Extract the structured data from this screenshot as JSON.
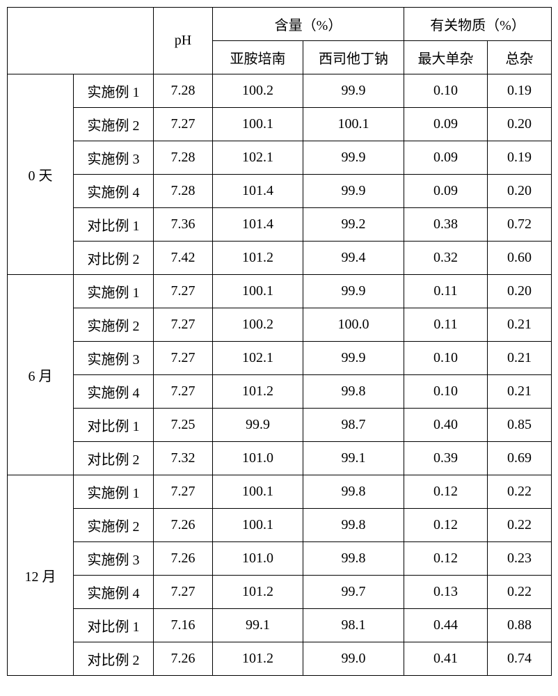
{
  "headers": {
    "ph": "pH",
    "content_group": "含量（%）",
    "related_group": "有关物质（%）",
    "content_sub1": "亚胺培南",
    "content_sub2": "西司他丁钠",
    "related_sub1": "最大单杂",
    "related_sub2": "总杂"
  },
  "periods": [
    {
      "label": "0 天",
      "rows": [
        {
          "sample": "实施例 1",
          "ph": "7.28",
          "c1": "100.2",
          "c2": "99.9",
          "r1": "0.10",
          "r2": "0.19"
        },
        {
          "sample": "实施例 2",
          "ph": "7.27",
          "c1": "100.1",
          "c2": "100.1",
          "r1": "0.09",
          "r2": "0.20"
        },
        {
          "sample": "实施例 3",
          "ph": "7.28",
          "c1": "102.1",
          "c2": "99.9",
          "r1": "0.09",
          "r2": "0.19"
        },
        {
          "sample": "实施例 4",
          "ph": "7.28",
          "c1": "101.4",
          "c2": "99.9",
          "r1": "0.09",
          "r2": "0.20"
        },
        {
          "sample": "对比例 1",
          "ph": "7.36",
          "c1": "101.4",
          "c2": "99.2",
          "r1": "0.38",
          "r2": "0.72"
        },
        {
          "sample": "对比例 2",
          "ph": "7.42",
          "c1": "101.2",
          "c2": "99.4",
          "r1": "0.32",
          "r2": "0.60"
        }
      ]
    },
    {
      "label": "6 月",
      "rows": [
        {
          "sample": "实施例 1",
          "ph": "7.27",
          "c1": "100.1",
          "c2": "99.9",
          "r1": "0.11",
          "r2": "0.20"
        },
        {
          "sample": "实施例 2",
          "ph": "7.27",
          "c1": "100.2",
          "c2": "100.0",
          "r1": "0.11",
          "r2": "0.21"
        },
        {
          "sample": "实施例 3",
          "ph": "7.27",
          "c1": "102.1",
          "c2": "99.9",
          "r1": "0.10",
          "r2": "0.21"
        },
        {
          "sample": "实施例 4",
          "ph": "7.27",
          "c1": "101.2",
          "c2": "99.8",
          "r1": "0.10",
          "r2": "0.21"
        },
        {
          "sample": "对比例 1",
          "ph": "7.25",
          "c1": "99.9",
          "c2": "98.7",
          "r1": "0.40",
          "r2": "0.85"
        },
        {
          "sample": "对比例 2",
          "ph": "7.32",
          "c1": "101.0",
          "c2": "99.1",
          "r1": "0.39",
          "r2": "0.69"
        }
      ]
    },
    {
      "label": "12 月",
      "rows": [
        {
          "sample": "实施例 1",
          "ph": "7.27",
          "c1": "100.1",
          "c2": "99.8",
          "r1": "0.12",
          "r2": "0.22"
        },
        {
          "sample": "实施例 2",
          "ph": "7.26",
          "c1": "100.1",
          "c2": "99.8",
          "r1": "0.12",
          "r2": "0.22"
        },
        {
          "sample": "实施例 3",
          "ph": "7.26",
          "c1": "101.0",
          "c2": "99.8",
          "r1": "0.12",
          "r2": "0.23"
        },
        {
          "sample": "实施例 4",
          "ph": "7.27",
          "c1": "101.2",
          "c2": "99.7",
          "r1": "0.13",
          "r2": "0.22"
        },
        {
          "sample": "对比例 1",
          "ph": "7.16",
          "c1": "99.1",
          "c2": "98.1",
          "r1": "0.44",
          "r2": "0.88"
        },
        {
          "sample": "对比例 2",
          "ph": "7.26",
          "c1": "101.2",
          "c2": "99.0",
          "r1": "0.41",
          "r2": "0.74"
        }
      ]
    }
  ]
}
